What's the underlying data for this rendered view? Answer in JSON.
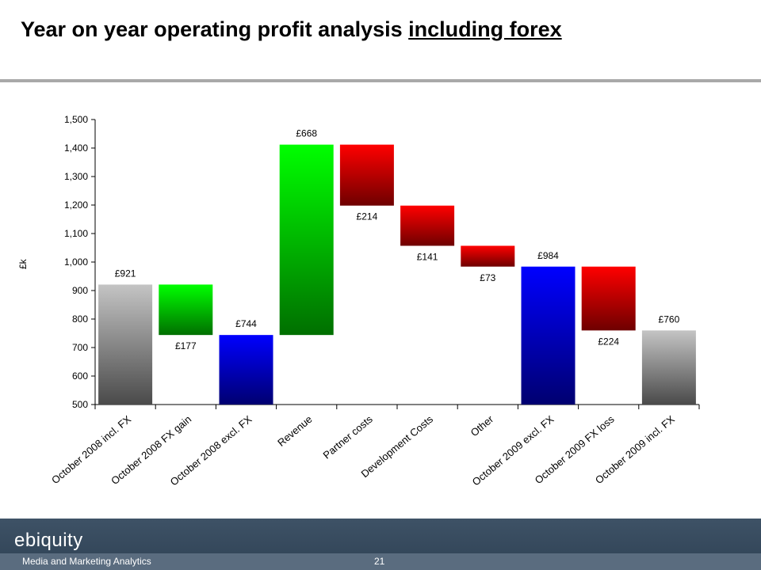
{
  "title": {
    "main": "Year on year operating profit analysis ",
    "underlined": "including forex"
  },
  "chart_data": {
    "type": "bar",
    "subtype": "waterfall",
    "ylabel": "£k",
    "ylim": [
      500,
      1500
    ],
    "yticks": [
      500,
      600,
      700,
      800,
      900,
      1000,
      1100,
      1200,
      1300,
      1400,
      1500
    ],
    "categories": [
      "October 2008 incl. FX",
      "October 2008 FX gain",
      "October 2008 excl. FX",
      "Revenue",
      "Partner costs",
      "Development Costs",
      "Other",
      "October 2009 excl. FX",
      "October 2009 FX loss",
      "October 2009 incl. FX"
    ],
    "bars": [
      {
        "bottom": 500,
        "top": 921,
        "label": "£921",
        "kind": "total"
      },
      {
        "bottom": 744,
        "top": 921,
        "label": "£177",
        "kind": "increase"
      },
      {
        "bottom": 500,
        "top": 744,
        "label": "£744",
        "kind": "subtotal"
      },
      {
        "bottom": 744,
        "top": 1412,
        "label": "£668",
        "kind": "increase"
      },
      {
        "bottom": 1198,
        "top": 1412,
        "label": "£214",
        "kind": "decrease"
      },
      {
        "bottom": 1057,
        "top": 1198,
        "label": "£141",
        "kind": "decrease"
      },
      {
        "bottom": 984,
        "top": 1057,
        "label": "£73",
        "kind": "decrease"
      },
      {
        "bottom": 500,
        "top": 984,
        "label": "£984",
        "kind": "subtotal"
      },
      {
        "bottom": 760,
        "top": 984,
        "label": "£224",
        "kind": "decrease"
      },
      {
        "bottom": 500,
        "top": 760,
        "label": "£760",
        "kind": "total"
      }
    ],
    "colors": {
      "total": [
        "#c4c4c4",
        "#4a4a4a"
      ],
      "increase": [
        "#00ff00",
        "#006f00"
      ],
      "subtotal": [
        "#0000ff",
        "#000070"
      ],
      "decrease": [
        "#ff0000",
        "#6e0000"
      ]
    },
    "grid": false,
    "legend": "none"
  },
  "footer": {
    "brand": "ebiquity",
    "tagline": "Media and Marketing Analytics",
    "page": "21"
  }
}
